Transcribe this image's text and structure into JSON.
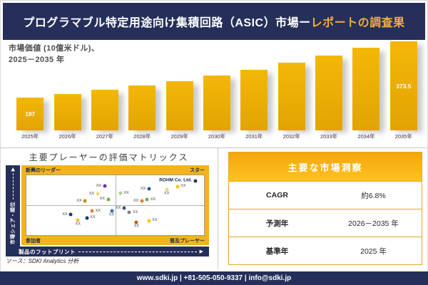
{
  "header": {
    "title_white": "プログラマブル特定用途向け集積回路（ASIC）市場ー",
    "title_accent": "レポートの調査果"
  },
  "chart": {
    "subtitle_line1": "市場価値 (10億米ドル)、",
    "subtitle_line2": "2025－2035 年"
  },
  "chart_data": [
    {
      "type": "bar",
      "title": "市場価値 (10億米ドル)、2025－2035 年",
      "ylabel": "市場価値 (10億米ドル)",
      "xlabel": "",
      "categories": [
        "2025年",
        "2026年",
        "2027年",
        "2028年",
        "2029年",
        "2030年",
        "2031年",
        "2032年",
        "2033年",
        "2034年",
        "2035年"
      ],
      "values": [
        197,
        210.1,
        224.1,
        239,
        254.9,
        271.8,
        289.9,
        309.2,
        329.8,
        351.7,
        373.5
      ],
      "data_labels": [
        "197",
        "",
        "",
        "",
        "",
        "",
        "",
        "",
        "",
        "",
        "373.5"
      ],
      "bar_color": "#E9A905",
      "ylim": [
        0,
        400
      ],
      "grid": false
    },
    {
      "type": "scatter",
      "title": "主要プレーヤーの評価マトリックス",
      "ylabel": "市場シェア・順位",
      "xlabel": "製品のフットプリント",
      "quadrants": {
        "top_left": "新興のリーダー",
        "top_right": "スター",
        "bottom_left": "参加者",
        "bottom_right": "普及プレーヤー"
      },
      "highlight_company": "ROHM Co. Ltd.",
      "points": [
        {
          "x": 44,
          "y": 18,
          "color": "#7030A0",
          "label": "XX",
          "side": "left"
        },
        {
          "x": 40,
          "y": 31,
          "color": "#EFD87B",
          "label": "XX",
          "side": "left"
        },
        {
          "x": 33,
          "y": 43,
          "color": "#BF9000",
          "label": "XX",
          "side": "left"
        },
        {
          "x": 46,
          "y": 40,
          "color": "#70AD47",
          "label": "XX",
          "side": "left"
        },
        {
          "x": 48,
          "y": 59,
          "color": "#2E75B6",
          "label": "XX",
          "side": "below"
        },
        {
          "x": 37,
          "y": 60,
          "color": "#ED7D31",
          "label": "XX",
          "side": "right"
        },
        {
          "x": 25,
          "y": 66,
          "color": "#1F3864",
          "label": "XX",
          "side": "left"
        },
        {
          "x": 34,
          "y": 71,
          "color": "#1F3864",
          "label": "XX",
          "side": "right"
        },
        {
          "x": 29,
          "y": 75,
          "color": "#F4B942",
          "label": "XX",
          "side": "below"
        },
        {
          "x": 53,
          "y": 30,
          "color": "#A9D18E",
          "label": "XX",
          "side": "right"
        },
        {
          "x": 69,
          "y": 23,
          "color": "#2F5597",
          "label": "XX",
          "side": "left"
        },
        {
          "x": 79,
          "y": 24,
          "color": "#EFD87B",
          "label": "XX",
          "side": "below"
        },
        {
          "x": 85,
          "y": 19,
          "color": "#FFC000",
          "label": "XX",
          "side": "right"
        },
        {
          "x": 95,
          "y": 9,
          "color": "#1F3864",
          "label": "ROHM Co. Ltd.",
          "side": "left",
          "highlight": true
        },
        {
          "x": 65,
          "y": 43,
          "color": "#ED7D31",
          "label": "XX",
          "side": "left"
        },
        {
          "x": 68,
          "y": 41,
          "color": "#70AD47",
          "label": "XX",
          "side": "right"
        },
        {
          "x": 55,
          "y": 55,
          "color": "#44546A",
          "label": "XX",
          "side": "left"
        },
        {
          "x": 58,
          "y": 62,
          "color": "#808080",
          "label": "XX",
          "side": "right"
        },
        {
          "x": 62,
          "y": 78,
          "color": "#C55A11",
          "label": "XX",
          "side": "below"
        },
        {
          "x": 69,
          "y": 76,
          "color": "#FFC000",
          "label": "XX",
          "side": "right"
        }
      ]
    }
  ],
  "matrix": {
    "title": "主要プレーヤーの評価マトリックス"
  },
  "insights": {
    "title": "主要な市場洞察",
    "rows": [
      {
        "label": "CAGR",
        "value": "約6.8%"
      },
      {
        "label": "予測年",
        "value": "2026－2035 年"
      },
      {
        "label": "基準年",
        "value": "2025 年"
      }
    ]
  },
  "source": "ソース：SDKI Analytics 分析",
  "footer": "www.sdki.jp | +81-505-050-9337 | info@sdki.jp",
  "colors": {
    "navy": "#252F5A",
    "gold": "#F2B31C",
    "bar_gold": "#E9A905",
    "title_accent": "#F2AE3C"
  }
}
